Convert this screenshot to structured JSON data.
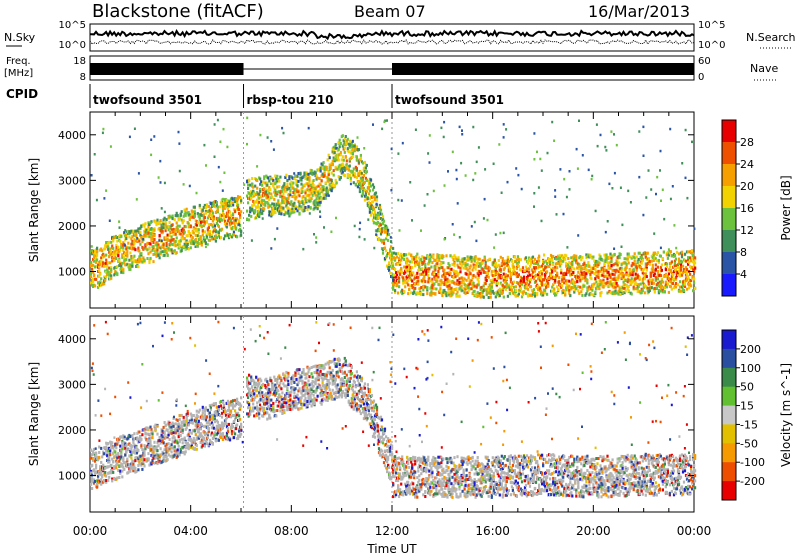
{
  "header": {
    "station": "Blackstone (fitACF)",
    "beam": "Beam 07",
    "date": "16/Mar/2013"
  },
  "colors": {
    "power_scale": [
      "#1a1aff",
      "#2a54a6",
      "#3f8f5a",
      "#6dc23d",
      "#f2d200",
      "#f5a000",
      "#ee5000",
      "#e80000"
    ],
    "velocity_scale": [
      "#1a1ad0",
      "#2a4ea0",
      "#3a8a4a",
      "#60c030",
      "#c8c8c8",
      "#e2c000",
      "#f59a00",
      "#ee4e00",
      "#e80000"
    ],
    "ground_scatter": "#b4b4b4"
  },
  "panels": {
    "sky": {
      "left_label": "N.Sky",
      "right_label": "N.Search",
      "left_ticks": [
        "10^5",
        "10^0"
      ],
      "right_ticks": [
        "10^5",
        "10^0"
      ]
    },
    "freq": {
      "left_label_1": "Freq.",
      "left_label_2": "[MHz]",
      "right_label": "Nave",
      "left_ticks": [
        "18",
        "8"
      ],
      "right_ticks": [
        "60",
        "0"
      ]
    },
    "cpid": {
      "label": "CPID",
      "segments": [
        {
          "start_hour": 0,
          "end_hour": 6.1,
          "name": "twofsound 3501"
        },
        {
          "start_hour": 6.1,
          "end_hour": 12.0,
          "name": "rbsp-tou 210"
        },
        {
          "start_hour": 12.0,
          "end_hour": 24,
          "name": "twofsound 3501"
        }
      ]
    }
  },
  "chart_data": [
    {
      "type": "heatmap",
      "title": "Power",
      "xlabel": "Time UT",
      "ylabel": "Slant Range [km]",
      "xlim": [
        0,
        24
      ],
      "ylim": [
        200,
        4500
      ],
      "x_ticks": [
        "00:00",
        "04:00",
        "08:00",
        "12:00",
        "16:00",
        "20:00",
        "00:00"
      ],
      "y_ticks": [
        1000,
        2000,
        3000,
        4000
      ],
      "colorbar_label": "Power [dB]",
      "colorbar_ticks": [
        4,
        8,
        12,
        16,
        20,
        24,
        28
      ],
      "colorbar_range": [
        0,
        30
      ],
      "bands": [
        {
          "x": [
            0,
            0.5,
            1,
            2,
            3,
            4,
            5,
            6
          ],
          "y": [
            1050,
            1200,
            1400,
            1600,
            1800,
            2000,
            2150,
            2250
          ],
          "value": 20
        },
        {
          "x": [
            6.2,
            7,
            8,
            9,
            9.5,
            10,
            10.5,
            11,
            11.5,
            12
          ],
          "y": [
            2600,
            2700,
            2700,
            2850,
            3200,
            3600,
            3400,
            2900,
            2000,
            1200
          ],
          "value": 18
        },
        {
          "x": [
            12,
            14,
            16,
            18,
            20,
            22,
            24
          ],
          "y": [
            1000,
            950,
            900,
            950,
            950,
            1000,
            1050
          ],
          "value": 22
        }
      ]
    },
    {
      "type": "heatmap",
      "title": "Velocity",
      "xlabel": "Time UT",
      "ylabel": "Slant Range [km]",
      "xlim": [
        0,
        24
      ],
      "ylim": [
        200,
        4500
      ],
      "x_ticks": [
        "00:00",
        "04:00",
        "08:00",
        "12:00",
        "16:00",
        "20:00",
        "00:00"
      ],
      "y_ticks": [
        1000,
        2000,
        3000,
        4000
      ],
      "colorbar_label": "Velocity [m s^-1]",
      "colorbar_ticks": [
        200,
        100,
        50,
        15,
        -15,
        -50,
        -100,
        -200
      ],
      "colorbar_range": [
        -250,
        250
      ],
      "bands": [
        {
          "x": [
            0,
            1,
            2,
            3,
            4,
            5,
            6
          ],
          "y": [
            1150,
            1400,
            1600,
            1800,
            2000,
            2200,
            2300
          ],
          "value": 0
        },
        {
          "x": [
            6.2,
            7,
            8,
            9,
            10,
            11,
            12
          ],
          "y": [
            2800,
            2700,
            2900,
            3000,
            3200,
            2600,
            1200
          ],
          "value": 0
        },
        {
          "x": [
            12,
            14,
            16,
            18,
            20,
            22,
            24
          ],
          "y": [
            1000,
            1000,
            1000,
            1050,
            1000,
            1050,
            1050
          ],
          "value": 0
        }
      ]
    }
  ],
  "footer": {
    "xlabel": "Time UT"
  }
}
